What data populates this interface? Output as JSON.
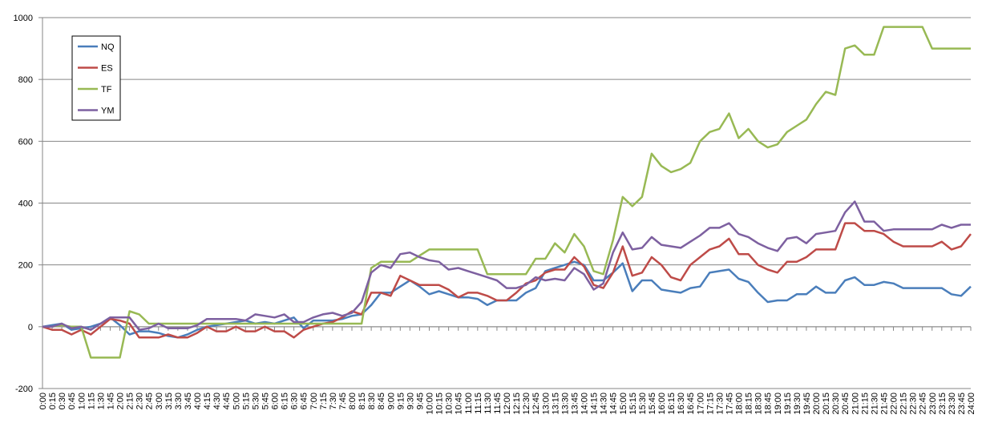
{
  "chart_data": {
    "type": "line",
    "categories": [
      "0:00",
      "0:15",
      "0:30",
      "0:45",
      "1:00",
      "1:15",
      "1:30",
      "1:45",
      "2:00",
      "2:15",
      "2:30",
      "2:45",
      "3:00",
      "3:15",
      "3:30",
      "3:45",
      "4:00",
      "4:15",
      "4:30",
      "4:45",
      "5:00",
      "5:15",
      "5:30",
      "5:45",
      "6:00",
      "6:15",
      "6:30",
      "6:45",
      "7:00",
      "7:15",
      "7:30",
      "7:45",
      "8:00",
      "8:15",
      "8:30",
      "8:45",
      "9:00",
      "9:15",
      "9:30",
      "9:45",
      "10:00",
      "10:15",
      "10:30",
      "10:45",
      "11:00",
      "11:15",
      "11:30",
      "11:45",
      "12:00",
      "12:15",
      "12:30",
      "12:45",
      "13:00",
      "13:15",
      "13:30",
      "13:45",
      "14:00",
      "14:15",
      "14:30",
      "14:45",
      "15:00",
      "15:15",
      "15:30",
      "15:45",
      "16:00",
      "16:15",
      "16:30",
      "16:45",
      "17:00",
      "17:15",
      "17:30",
      "17:45",
      "18:00",
      "18:15",
      "18:30",
      "18:45",
      "19:00",
      "19:15",
      "19:30",
      "19:45",
      "20:00",
      "20:15",
      "20:30",
      "20:45",
      "21:00",
      "21:15",
      "21:30",
      "21:45",
      "22:00",
      "22:15",
      "22:30",
      "22:45",
      "23:00",
      "23:15",
      "23:30",
      "23:45",
      "24:00"
    ],
    "series": [
      {
        "name": "NQ",
        "color": "#4a7ebb",
        "values": [
          0,
          5,
          10,
          -10,
          -5,
          0,
          10,
          30,
          5,
          -25,
          -15,
          -15,
          -20,
          -30,
          -35,
          -25,
          -10,
          0,
          5,
          10,
          15,
          20,
          10,
          15,
          10,
          20,
          30,
          -5,
          20,
          20,
          20,
          25,
          35,
          40,
          70,
          110,
          110,
          130,
          150,
          130,
          105,
          115,
          105,
          95,
          95,
          90,
          70,
          85,
          85,
          85,
          110,
          125,
          180,
          190,
          200,
          210,
          200,
          150,
          150,
          175,
          205,
          115,
          150,
          150,
          120,
          115,
          110,
          125,
          130,
          175,
          180,
          185,
          155,
          145,
          110,
          80,
          85,
          85,
          105,
          105,
          130,
          110,
          110,
          150,
          160,
          135,
          135,
          145,
          140,
          125,
          125,
          125,
          125,
          125,
          105,
          100,
          130
        ]
      },
      {
        "name": "ES",
        "color": "#be4b48",
        "values": [
          0,
          -10,
          -10,
          -25,
          -10,
          -25,
          0,
          25,
          20,
          10,
          -35,
          -35,
          -35,
          -25,
          -35,
          -35,
          -20,
          0,
          -15,
          -15,
          0,
          -15,
          -15,
          0,
          -15,
          -15,
          -35,
          -10,
          0,
          10,
          15,
          30,
          50,
          40,
          110,
          110,
          100,
          165,
          150,
          135,
          135,
          135,
          120,
          95,
          110,
          110,
          100,
          85,
          85,
          110,
          140,
          150,
          175,
          185,
          185,
          225,
          195,
          135,
          125,
          175,
          260,
          165,
          175,
          225,
          200,
          160,
          150,
          200,
          225,
          250,
          260,
          285,
          235,
          235,
          200,
          185,
          175,
          210,
          210,
          225,
          250,
          250,
          250,
          335,
          335,
          310,
          310,
          300,
          275,
          260,
          260,
          260,
          260,
          275,
          250,
          260,
          300
        ]
      },
      {
        "name": "TF",
        "color": "#98b954",
        "values": [
          0,
          0,
          5,
          0,
          0,
          -100,
          -100,
          -100,
          -100,
          50,
          40,
          10,
          10,
          10,
          10,
          10,
          10,
          10,
          10,
          10,
          10,
          10,
          10,
          10,
          10,
          10,
          10,
          10,
          10,
          10,
          10,
          10,
          10,
          10,
          190,
          210,
          210,
          210,
          210,
          230,
          250,
          250,
          250,
          250,
          250,
          250,
          170,
          170,
          170,
          170,
          170,
          220,
          220,
          270,
          240,
          300,
          260,
          180,
          170,
          280,
          420,
          390,
          420,
          560,
          520,
          500,
          510,
          530,
          600,
          630,
          640,
          690,
          610,
          640,
          600,
          580,
          590,
          630,
          650,
          670,
          720,
          760,
          750,
          900,
          910,
          880,
          880,
          970,
          970,
          970,
          970,
          970,
          900,
          900,
          900,
          900,
          900
        ]
      },
      {
        "name": "YM",
        "color": "#7d60a0",
        "values": [
          0,
          0,
          10,
          -5,
          0,
          -10,
          10,
          30,
          30,
          30,
          -10,
          -5,
          10,
          -5,
          -5,
          -5,
          5,
          25,
          25,
          25,
          25,
          20,
          40,
          35,
          30,
          40,
          15,
          15,
          30,
          40,
          45,
          35,
          45,
          80,
          175,
          200,
          190,
          235,
          240,
          225,
          215,
          210,
          185,
          190,
          180,
          170,
          160,
          150,
          125,
          125,
          135,
          160,
          150,
          155,
          150,
          190,
          170,
          120,
          140,
          240,
          305,
          250,
          255,
          290,
          265,
          260,
          255,
          275,
          295,
          320,
          320,
          335,
          300,
          290,
          270,
          255,
          245,
          285,
          290,
          270,
          300,
          305,
          310,
          370,
          405,
          340,
          340,
          310,
          315,
          315,
          315,
          315,
          315,
          330,
          320,
          330,
          330
        ]
      }
    ],
    "ylim": [
      -200,
      1000
    ],
    "yticks": [
      -200,
      0,
      200,
      400,
      600,
      800,
      1000
    ],
    "grid": true,
    "legend": "top-left"
  }
}
